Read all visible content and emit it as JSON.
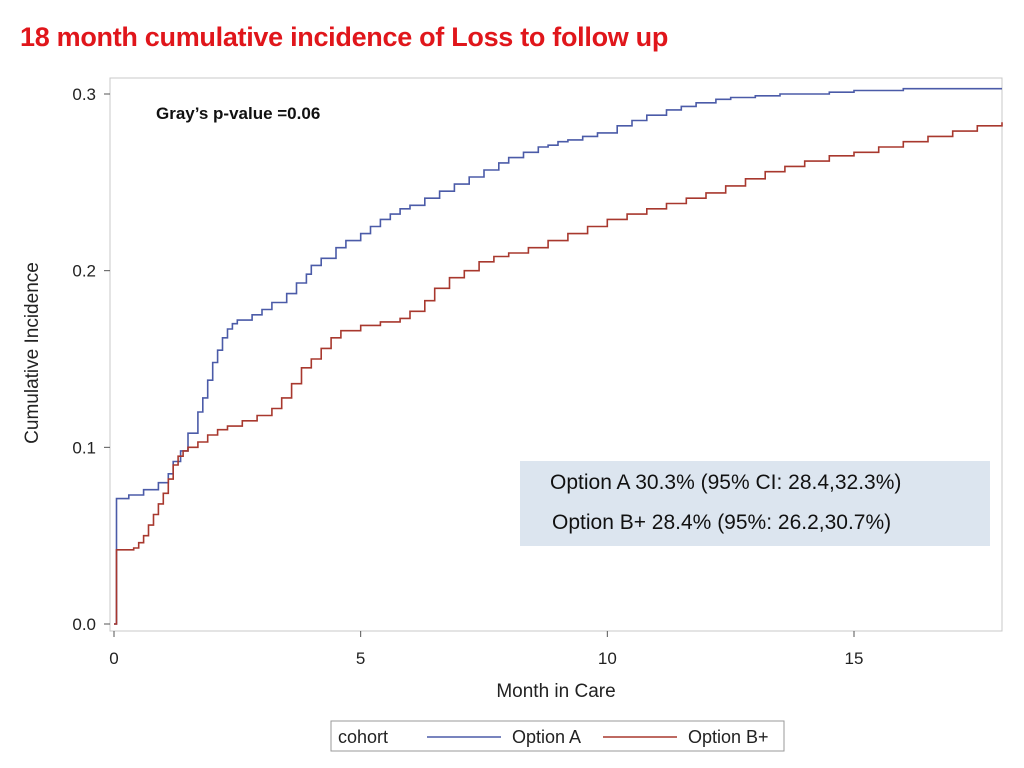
{
  "slide": {
    "title": "18 month cumulative incidence of Loss to follow up"
  },
  "annotations": {
    "pvalue": "Gray’s p-value =0.06",
    "option_a_stat": "Option A 30.3% (95% CI: 28.4,32.3%)",
    "option_b_stat": "Option B+ 28.4% (95%: 26.2,30.7%)"
  },
  "colors": {
    "title": "#e0161b",
    "option_a": "#4b5ba8",
    "option_b": "#a8382e",
    "stat_box": "#dce5ef"
  },
  "chart_data": {
    "type": "line",
    "step": true,
    "xlabel": "Month in Care",
    "ylabel": "Cumulative Incidence",
    "xlim": [
      0,
      18
    ],
    "ylim": [
      0,
      0.3
    ],
    "xticks": [
      0,
      5,
      10,
      15
    ],
    "yticks": [
      0.0,
      0.1,
      0.2,
      0.3
    ],
    "ytick_labels": [
      "0.0",
      "0.1",
      "0.2",
      "0.3"
    ],
    "legend": {
      "title": "cohort",
      "position": "bottom-center",
      "entries": [
        "Option A",
        "Option B+"
      ]
    },
    "series": [
      {
        "name": "Option A",
        "x": [
          0,
          0.05,
          0.3,
          0.6,
          0.9,
          1.1,
          1.2,
          1.35,
          1.5,
          1.7,
          1.8,
          1.9,
          2.0,
          2.1,
          2.2,
          2.3,
          2.4,
          2.5,
          2.8,
          3.0,
          3.2,
          3.5,
          3.7,
          3.9,
          4.0,
          4.2,
          4.5,
          4.7,
          5.0,
          5.2,
          5.4,
          5.6,
          5.8,
          6.0,
          6.3,
          6.6,
          6.9,
          7.2,
          7.5,
          7.8,
          8.0,
          8.3,
          8.6,
          8.8,
          9.0,
          9.2,
          9.5,
          9.8,
          10.2,
          10.5,
          10.8,
          11.2,
          11.5,
          11.8,
          12.2,
          12.5,
          13.0,
          13.5,
          14.0,
          14.5,
          15.0,
          16.0,
          17.0,
          18.0
        ],
        "y": [
          0,
          0.071,
          0.073,
          0.076,
          0.08,
          0.085,
          0.092,
          0.098,
          0.108,
          0.12,
          0.128,
          0.138,
          0.148,
          0.155,
          0.162,
          0.167,
          0.17,
          0.172,
          0.175,
          0.178,
          0.182,
          0.187,
          0.193,
          0.198,
          0.203,
          0.207,
          0.213,
          0.217,
          0.221,
          0.225,
          0.229,
          0.232,
          0.235,
          0.237,
          0.241,
          0.245,
          0.249,
          0.253,
          0.257,
          0.261,
          0.264,
          0.267,
          0.27,
          0.271,
          0.273,
          0.274,
          0.276,
          0.278,
          0.282,
          0.285,
          0.288,
          0.291,
          0.293,
          0.295,
          0.297,
          0.298,
          0.299,
          0.3,
          0.3,
          0.301,
          0.302,
          0.303,
          0.303,
          0.303
        ]
      },
      {
        "name": "Option B+",
        "x": [
          0,
          0.05,
          0.4,
          0.5,
          0.6,
          0.7,
          0.8,
          0.9,
          1.0,
          1.1,
          1.2,
          1.3,
          1.4,
          1.5,
          1.7,
          1.9,
          2.1,
          2.3,
          2.6,
          2.9,
          3.2,
          3.4,
          3.6,
          3.8,
          4.0,
          4.2,
          4.4,
          4.6,
          5.0,
          5.4,
          5.8,
          6.0,
          6.3,
          6.5,
          6.8,
          7.1,
          7.4,
          7.7,
          8.0,
          8.4,
          8.8,
          9.2,
          9.6,
          10.0,
          10.4,
          10.8,
          11.2,
          11.6,
          12.0,
          12.4,
          12.8,
          13.2,
          13.6,
          14.0,
          14.5,
          15.0,
          15.5,
          16.0,
          16.5,
          17.0,
          17.5,
          18.0
        ],
        "y": [
          0,
          0.042,
          0.043,
          0.046,
          0.05,
          0.056,
          0.062,
          0.068,
          0.074,
          0.082,
          0.09,
          0.095,
          0.098,
          0.1,
          0.103,
          0.107,
          0.11,
          0.112,
          0.115,
          0.118,
          0.122,
          0.128,
          0.136,
          0.145,
          0.15,
          0.156,
          0.162,
          0.166,
          0.169,
          0.171,
          0.173,
          0.177,
          0.183,
          0.19,
          0.196,
          0.2,
          0.205,
          0.208,
          0.21,
          0.213,
          0.217,
          0.221,
          0.225,
          0.229,
          0.232,
          0.235,
          0.238,
          0.241,
          0.244,
          0.248,
          0.252,
          0.256,
          0.259,
          0.262,
          0.265,
          0.267,
          0.27,
          0.273,
          0.276,
          0.279,
          0.282,
          0.284
        ]
      }
    ]
  }
}
